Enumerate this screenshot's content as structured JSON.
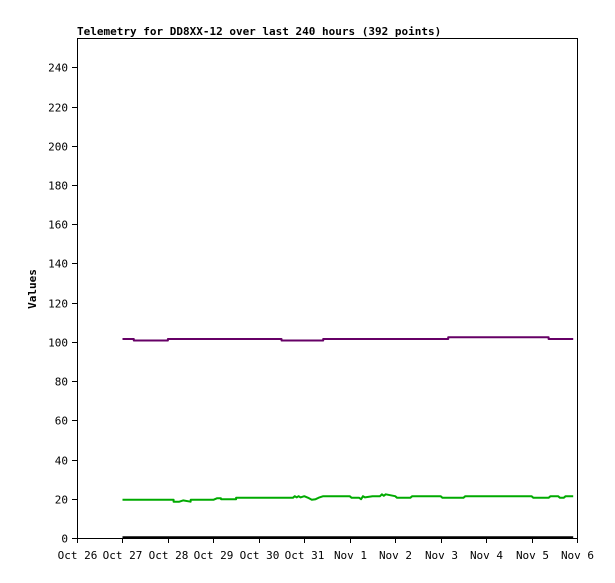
{
  "chart_data": {
    "type": "line",
    "title": "Telemetry for DD8XX-12 over last 240 hours (392 points)",
    "xlabel": "",
    "ylabel": "Values",
    "x_type": "date",
    "xlim": [
      "2024-10-26",
      "2024-11-06"
    ],
    "ylim": [
      0,
      255
    ],
    "grid": false,
    "legend": "none",
    "y_ticks": [
      0,
      20,
      40,
      60,
      80,
      100,
      120,
      140,
      160,
      180,
      200,
      220,
      240
    ],
    "x_ticks": [
      {
        "date": "2024-10-26",
        "label": "Oct 26"
      },
      {
        "date": "2024-10-27",
        "label": "Oct 27"
      },
      {
        "date": "2024-10-28",
        "label": "Oct 28"
      },
      {
        "date": "2024-10-29",
        "label": "Oct 29"
      },
      {
        "date": "2024-10-30",
        "label": "Oct 30"
      },
      {
        "date": "2024-10-31",
        "label": "Oct 31"
      },
      {
        "date": "2024-11-01",
        "label": "Nov 1"
      },
      {
        "date": "2024-11-02",
        "label": "Nov 2"
      },
      {
        "date": "2024-11-03",
        "label": "Nov 3"
      },
      {
        "date": "2024-11-04",
        "label": "Nov 4"
      },
      {
        "date": "2024-11-05",
        "label": "Nov 5"
      },
      {
        "date": "2024-11-06",
        "label": "Nov 6"
      }
    ],
    "series": [
      {
        "color": "#660066",
        "x": [
          "2024-10-27 00:00",
          "2024-10-27 06:00",
          "2024-10-27 06:01",
          "2024-10-28 00:00",
          "2024-10-28 00:01",
          "2024-10-30 12:00",
          "2024-10-30 12:01",
          "2024-10-31 10:00",
          "2024-10-31 10:01",
          "2024-11-03 04:00",
          "2024-11-03 04:01",
          "2024-11-05 09:00",
          "2024-11-05 09:01",
          "2024-11-05 22:00"
        ],
        "y": [
          101.5,
          101.5,
          100.7,
          100.7,
          101.5,
          101.5,
          100.7,
          100.7,
          101.5,
          101.5,
          102.4,
          102.4,
          101.5,
          101.5
        ]
      },
      {
        "color": "#00aa00",
        "x": [
          "2024-10-27 00:00",
          "2024-10-28 03:00",
          "2024-10-28 03:01",
          "2024-10-28 06:00",
          "2024-10-28 08:00",
          "2024-10-28 12:00",
          "2024-10-28 12:01",
          "2024-10-29 00:00",
          "2024-10-29 02:00",
          "2024-10-29 04:00",
          "2024-10-29 04:01",
          "2024-10-29 12:00",
          "2024-10-29 12:01",
          "2024-10-30 18:00",
          "2024-10-30 19:00",
          "2024-10-30 20:00",
          "2024-10-30 21:00",
          "2024-10-30 22:00",
          "2024-10-31 00:00",
          "2024-10-31 02:00",
          "2024-10-31 04:00",
          "2024-10-31 06:00",
          "2024-10-31 08:00",
          "2024-10-31 10:00",
          "2024-10-31 10:01",
          "2024-11-01 00:00",
          "2024-11-01 01:00",
          "2024-11-01 05:00",
          "2024-11-01 06:00",
          "2024-11-01 07:00",
          "2024-11-01 08:00",
          "2024-11-01 12:00",
          "2024-11-01 16:00",
          "2024-11-01 17:00",
          "2024-11-01 18:00",
          "2024-11-01 19:00",
          "2024-11-02 00:00",
          "2024-11-02 01:00",
          "2024-11-02 08:00",
          "2024-11-02 09:00",
          "2024-11-03 00:00",
          "2024-11-03 01:00",
          "2024-11-03 12:00",
          "2024-11-03 13:00",
          "2024-11-05 00:00",
          "2024-11-05 01:00",
          "2024-11-05 09:00",
          "2024-11-05 10:00",
          "2024-11-05 14:00",
          "2024-11-05 15:00",
          "2024-11-05 17:00",
          "2024-11-05 18:00",
          "2024-11-05 22:00"
        ],
        "y": [
          19.5,
          19.5,
          18.5,
          18.5,
          19.2,
          18.5,
          19.5,
          19.5,
          20.3,
          20.3,
          19.8,
          19.8,
          20.5,
          20.5,
          21.3,
          20.7,
          21.3,
          20.7,
          21.3,
          20.5,
          19.5,
          19.8,
          20.7,
          21.3,
          21.3,
          21.3,
          20.5,
          20.5,
          19.8,
          21.3,
          20.7,
          21.3,
          21.3,
          22.3,
          21.5,
          22.3,
          21.3,
          20.5,
          20.5,
          21.3,
          21.3,
          20.5,
          20.5,
          21.3,
          21.3,
          20.5,
          20.5,
          21.3,
          21.3,
          20.5,
          20.5,
          21.3,
          21.3
        ]
      },
      {
        "color": "#000000",
        "x": [
          "2024-10-27 00:00",
          "2024-11-05 22:00"
        ],
        "y": [
          0.4,
          0.4
        ]
      }
    ]
  }
}
